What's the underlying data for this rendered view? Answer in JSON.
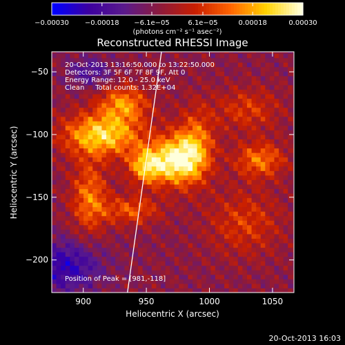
{
  "chart_data": {
    "type": "heatmap",
    "title": "Reconstructed RHESSI Image",
    "xlabel": "Heliocentric X (arcsec)",
    "ylabel": "Heliocentric Y (arcsec)",
    "xlim": [
      875,
      1067
    ],
    "ylim": [
      -226,
      -34
    ],
    "xticks": [
      900,
      950,
      1000,
      1050
    ],
    "xtick_labels": [
      "900",
      "950",
      "1000",
      "1050"
    ],
    "yticks": [
      -50,
      -100,
      -150,
      -200
    ],
    "ytick_labels": [
      "−50",
      "−100",
      "−150",
      "−200"
    ],
    "colorbar": {
      "range": [
        -0.0003,
        0.0003
      ],
      "ticks": [
        -0.0003,
        -0.00018,
        -6.1e-05,
        6.1e-05,
        0.00018,
        0.0003
      ],
      "tick_labels": [
        "−0.00030",
        "−0.00018",
        "−6.1e−05",
        "6.1e−05",
        "0.00018",
        "0.00030"
      ],
      "units_label": "(photons cm⁻² s⁻¹ asec⁻²)",
      "colormap": [
        "#0000ff",
        "#3c00a0",
        "#5a1a8c",
        "#8c1a3c",
        "#c81e00",
        "#ff6400",
        "#ffd200",
        "#ffffdc"
      ]
    },
    "annotations": [
      "20-Oct-2013 13:16:50.000 to 13:22:50.000",
      "Detectors: 3F 5F 6F 7F 8F 9F, Att 0",
      "Energy Range: 12.0 - 25.0 keV",
      "Clean     Total counts: 1.32E+04"
    ],
    "peak_label": "Position of Peak = [981,-118]",
    "limb_line": [
      [
        935,
        -226
      ],
      [
        962,
        -34
      ]
    ],
    "sources": [
      {
        "x": 975,
        "y": -120,
        "sx": 14,
        "sy": 14,
        "amp": 1.0
      },
      {
        "x": 950,
        "y": -125,
        "sx": 10,
        "sy": 10,
        "amp": 0.75
      },
      {
        "x": 915,
        "y": -100,
        "sx": 22,
        "sy": 12,
        "amp": 0.85
      },
      {
        "x": 932,
        "y": -75,
        "sx": 14,
        "sy": 10,
        "amp": 0.6
      },
      {
        "x": 905,
        "y": -150,
        "sx": 10,
        "sy": 20,
        "amp": 0.55
      },
      {
        "x": 938,
        "y": -160,
        "sx": 16,
        "sy": 8,
        "amp": 0.45
      },
      {
        "x": 990,
        "y": -105,
        "sx": 10,
        "sy": 20,
        "amp": 0.45
      },
      {
        "x": 1040,
        "y": -120,
        "sx": 14,
        "sy": 10,
        "amp": 0.55
      },
      {
        "x": 1030,
        "y": -80,
        "sx": 18,
        "sy": 12,
        "amp": 0.35
      },
      {
        "x": 1028,
        "y": -170,
        "sx": 20,
        "sy": 18,
        "amp": 0.35
      },
      {
        "x": 885,
        "y": -205,
        "sx": 20,
        "sy": 14,
        "amp": -0.55
      },
      {
        "x": 905,
        "y": -50,
        "sx": 12,
        "sy": 8,
        "amp": -0.35
      }
    ]
  },
  "footer_timestamp": "20-Oct-2013 16:03"
}
